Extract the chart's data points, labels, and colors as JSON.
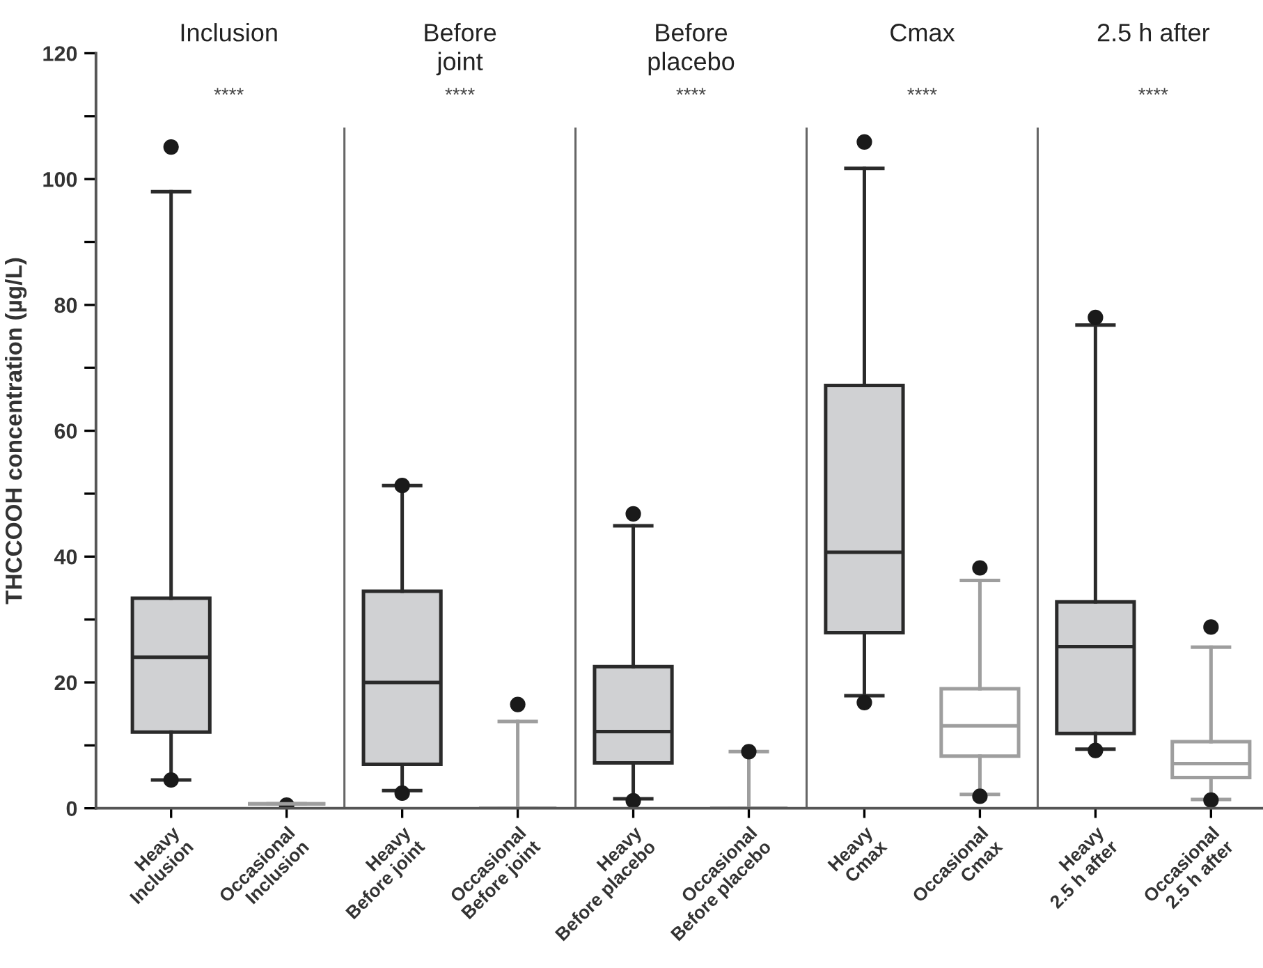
{
  "chart_data": {
    "type": "box",
    "ylabel": "THCCOOH concentration (µg/L)",
    "categories": [
      "Heavy\nInclusion",
      "Occasional\nInclusion",
      "Heavy\nBefore joint",
      "Occasional\nBefore joint",
      "Heavy\nBefore placebo",
      "Occasional\nBefore placebo",
      "Heavy\nCmax",
      "Occasional\nCmax",
      "Heavy\n2.5 h after",
      "Occasional\n2.5 h after"
    ],
    "annotations": [
      "Inclusion",
      "Before\njoint",
      "Before\nplacebo",
      "Cmax",
      "2.5 h after",
      "****",
      "****",
      "****",
      "****",
      "****"
    ],
    "series": [
      {
        "color": "#2a2a2a",
        "colors": [
          "#d0d1d3",
          null,
          "#d0d1d3",
          null,
          "#d0d1d3",
          null,
          "#d0d1d3",
          null,
          "#d0d1d3",
          null
        ],
        "boxes": [
          {
            "low": 4.5,
            "q1": 12.1,
            "median": 24.0,
            "q3": 33.4,
            "high": 98.0,
            "outliers": [
              4.5,
              105.1
            ]
          },
          null,
          {
            "low": 2.8,
            "q1": 7.0,
            "median": 20.0,
            "q3": 34.5,
            "high": 51.3,
            "outliers": [
              2.4,
              51.3
            ]
          },
          null,
          {
            "low": 1.5,
            "q1": 7.2,
            "median": 12.2,
            "q3": 22.5,
            "high": 44.9,
            "outliers": [
              1.2,
              46.8
            ]
          },
          null,
          {
            "low": 17.9,
            "q1": 27.9,
            "median": 40.7,
            "q3": 67.2,
            "high": 101.7,
            "outliers": [
              16.8,
              105.9
            ]
          },
          null,
          {
            "low": 9.4,
            "q1": 11.9,
            "median": 25.7,
            "q3": 32.8,
            "high": 76.8,
            "outliers": [
              9.2,
              78.0
            ]
          },
          null
        ]
      },
      {
        "color": "#9e9e9e",
        "colors": [
          null,
          null,
          null,
          null,
          null,
          null,
          null,
          "#ffffff",
          null,
          "#ffffff"
        ],
        "boxes": [
          null,
          {
            "low": 0.7,
            "q1": 0.7,
            "median": 0.7,
            "q3": 0.7,
            "high": 0.7,
            "outliers": [
              0.5
            ]
          },
          null,
          {
            "low": 0,
            "q1": 0,
            "median": 0,
            "q3": 0,
            "high": 13.8,
            "outliers": [
              16.5
            ]
          },
          null,
          {
            "low": 0,
            "q1": 0,
            "median": 0,
            "q3": 0,
            "high": 9.0,
            "outliers": [
              9.0
            ]
          },
          null,
          {
            "low": 2.2,
            "q1": 8.3,
            "median": 13.1,
            "q3": 19.0,
            "high": 36.2,
            "outliers": [
              1.9,
              38.2
            ]
          },
          null,
          {
            "low": 1.4,
            "q1": 4.9,
            "median": 7.1,
            "q3": 10.6,
            "high": 25.6,
            "outliers": [
              1.3,
              28.8
            ]
          }
        ]
      }
    ],
    "ylim": [
      0,
      120
    ],
    "yticks": [
      0,
      {
        "value": 10,
        "label": null
      },
      20,
      {
        "value": 30,
        "label": null
      },
      40,
      {
        "value": 50,
        "label": null
      },
      60,
      {
        "value": 70,
        "label": null
      },
      80,
      {
        "value": 90,
        "label": null
      },
      100,
      {
        "value": 110,
        "label": null
      },
      120
    ],
    "grid": false,
    "legend": false
  }
}
